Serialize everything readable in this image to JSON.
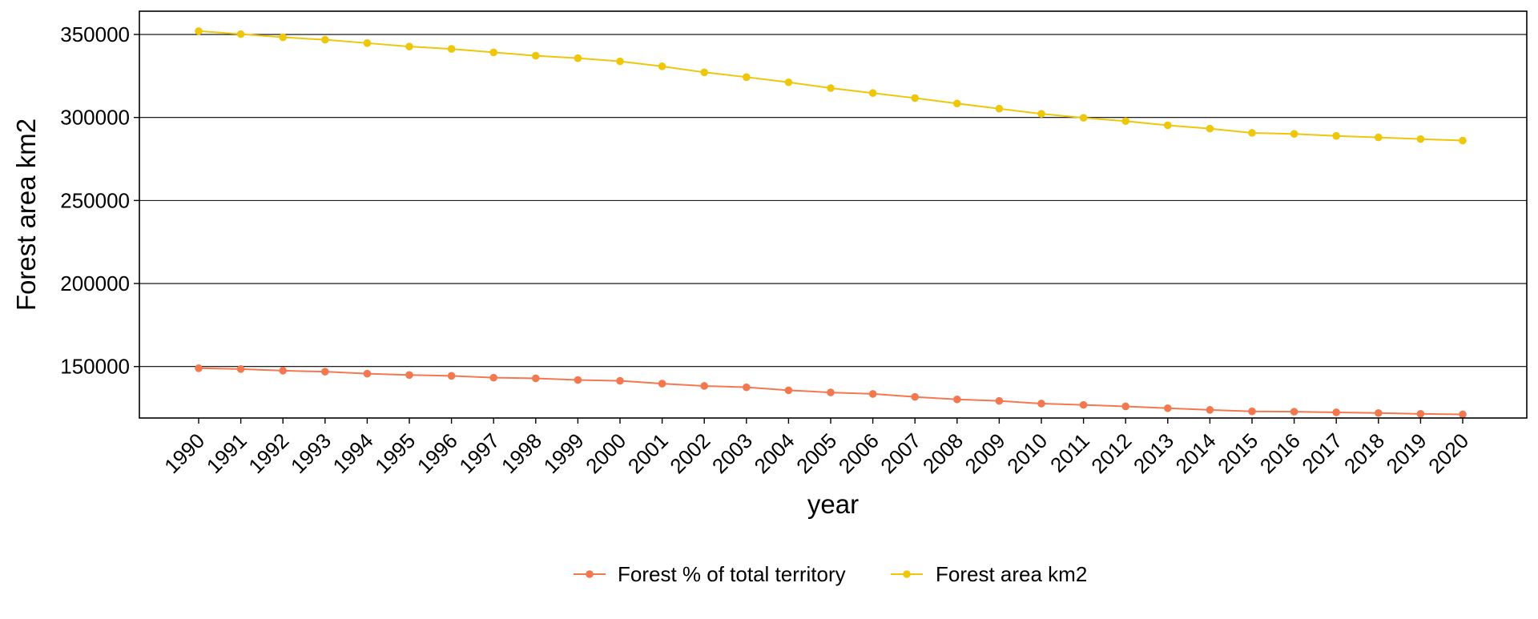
{
  "chart_data": {
    "type": "line",
    "xlabel": "year",
    "ylabel": "Forest area km2",
    "ylim": [
      119000,
      364000
    ],
    "yticks": [
      150000,
      200000,
      250000,
      300000,
      350000
    ],
    "grid": "horizontal major lines",
    "legend_position": "bottom",
    "categories": [
      "1990",
      "1991",
      "1992",
      "1993",
      "1994",
      "1995",
      "1996",
      "1997",
      "1998",
      "1999",
      "2000",
      "2001",
      "2002",
      "2003",
      "2004",
      "2005",
      "2006",
      "2007",
      "2008",
      "2009",
      "2010",
      "2011",
      "2012",
      "2013",
      "2014",
      "2015",
      "2016",
      "2017",
      "2018",
      "2019",
      "2020"
    ],
    "series": [
      {
        "name": "Forest % of total territory",
        "color": "#F4784F",
        "values": [
          149000,
          148500,
          147500,
          146900,
          145700,
          144900,
          144400,
          143300,
          142900,
          141900,
          141400,
          139700,
          138300,
          137500,
          135700,
          134400,
          133500,
          131700,
          130200,
          129300,
          127700,
          126900,
          126000,
          124900,
          123900,
          123000,
          122800,
          122400,
          122000,
          121500,
          121200
        ]
      },
      {
        "name": "Forest area km2",
        "color": "#EEC60A",
        "values": [
          352000,
          350200,
          348300,
          346800,
          344800,
          342700,
          341300,
          339200,
          337200,
          335700,
          333800,
          330800,
          327200,
          324300,
          321200,
          317700,
          314700,
          311700,
          308400,
          305300,
          302200,
          299800,
          297800,
          295300,
          293300,
          290700,
          290100,
          288900,
          288000,
          287000,
          286100
        ]
      }
    ]
  }
}
